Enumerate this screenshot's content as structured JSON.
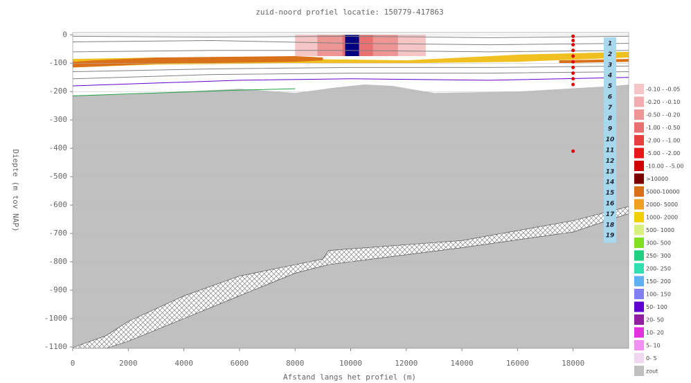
{
  "chart_data": {
    "type": "profile",
    "title": "zuid-noord profiel locatie: 150779-417863",
    "x_label": "Afstand langs het profiel (m)",
    "y_label": "Diepte (m tov NAP)",
    "xlim": [
      0,
      20000
    ],
    "xticks": [
      0,
      2000,
      4000,
      6000,
      8000,
      10000,
      12000,
      14000,
      16000,
      18000
    ],
    "ylim": [
      -1105,
      8
    ],
    "yticks": [
      0,
      -100,
      -200,
      -300,
      -400,
      -500,
      -600,
      -700,
      -800,
      -900,
      -1000,
      -1100
    ],
    "grid": true,
    "areas": [
      {
        "color": "#c0c0c0",
        "x": [
          0,
          2000,
          4000,
          6000,
          8000,
          9500,
          10500,
          11500,
          13000,
          16000,
          19500,
          20000
        ],
        "upper": [
          -215,
          -210,
          -200,
          -190,
          -205,
          -185,
          -175,
          -180,
          -205,
          -200,
          -180,
          -175
        ],
        "lower": [
          -1105,
          -1105,
          -1105,
          -1105,
          -1105,
          -1105,
          -1105,
          -1105,
          -1105,
          -1105,
          -1105,
          -1105
        ]
      },
      {
        "color": "#ffffff",
        "hatch": true,
        "x": [
          0,
          1200,
          2000,
          4000,
          6000,
          8000,
          9000,
          9200,
          14000,
          18000,
          20000
        ],
        "upper": [
          -1102,
          -1060,
          -1010,
          -920,
          -850,
          -810,
          -790,
          -760,
          -725,
          -655,
          -605
        ],
        "lower": [
          -1105,
          -1105,
          -1080,
          -1000,
          -920,
          -840,
          -815,
          -810,
          -750,
          -695,
          -630
        ]
      },
      {
        "color": "#f0c020",
        "x": [
          0,
          3000,
          8000,
          12000,
          16000,
          20000
        ],
        "upper": [
          -85,
          -80,
          -85,
          -90,
          -70,
          -60
        ],
        "lower": [
          -115,
          -105,
          -100,
          -100,
          -95,
          -80
        ]
      },
      {
        "color": "#d9701a",
        "x": [
          0,
          800,
          3000,
          8000,
          9000
        ],
        "upper": [
          -95,
          -90,
          -80,
          -75,
          -80
        ],
        "lower": [
          -115,
          -112,
          -102,
          -95,
          -90
        ]
      },
      {
        "color": "#d9701a",
        "x": [
          17500,
          18500,
          20000
        ],
        "upper": [
          -90,
          -88,
          -85
        ],
        "lower": [
          -100,
          -98,
          -95
        ]
      },
      {
        "color": "#f6c6c6",
        "x": [
          8000,
          12700
        ],
        "upper": [
          0,
          0
        ],
        "lower": [
          -75,
          -75
        ]
      },
      {
        "color": "#ee9696",
        "x": [
          8800,
          11700
        ],
        "upper": [
          0,
          0
        ],
        "lower": [
          -75,
          -75
        ]
      },
      {
        "color": "#e87070",
        "x": [
          9700,
          10800
        ],
        "upper": [
          0,
          0
        ],
        "lower": [
          -75,
          -75
        ]
      },
      {
        "color": "#000080",
        "x": [
          9800,
          10300
        ],
        "upper": [
          0,
          0
        ],
        "lower": [
          -75,
          -75
        ]
      }
    ],
    "lines": [
      {
        "color": "#808080",
        "x": [
          0,
          5000,
          10000,
          15000,
          20000
        ],
        "y": [
          -5,
          -8,
          -5,
          -10,
          -5
        ]
      },
      {
        "color": "#808080",
        "x": [
          0,
          5000,
          10000,
          15000,
          20000
        ],
        "y": [
          -25,
          -20,
          -30,
          -35,
          -30
        ]
      },
      {
        "color": "#808080",
        "x": [
          0,
          5000,
          10000,
          15000,
          20000
        ],
        "y": [
          -60,
          -55,
          -55,
          -60,
          -55
        ]
      },
      {
        "color": "#808080",
        "x": [
          0,
          5000,
          10000,
          15000,
          20000
        ],
        "y": [
          -130,
          -120,
          -115,
          -115,
          -110
        ]
      },
      {
        "color": "#808080",
        "x": [
          0,
          5000,
          10000,
          15000,
          20000
        ],
        "y": [
          -155,
          -140,
          -135,
          -135,
          -130
        ]
      },
      {
        "color": "#6000d0",
        "x": [
          0,
          3000,
          6000,
          10000,
          15000,
          20000
        ],
        "y": [
          -180,
          -170,
          -160,
          -155,
          -160,
          -150
        ]
      },
      {
        "color": "#20a040",
        "x": [
          0,
          3000,
          6000,
          8000
        ],
        "y": [
          -215,
          -205,
          -195,
          -190
        ]
      }
    ],
    "points": {
      "color": "#e00000",
      "x": [
        18000,
        18000,
        18000,
        18000,
        18000,
        18000,
        18000,
        18000,
        18000,
        18000,
        18000
      ],
      "y": [
        -5,
        -20,
        -35,
        -55,
        -75,
        -95,
        -115,
        -135,
        -155,
        -175,
        -410
      ]
    },
    "well_labels": [
      "1",
      "2",
      "3",
      "4",
      "5",
      "6",
      "7",
      "8",
      "9",
      "10",
      "11",
      "12",
      "13",
      "14",
      "15",
      "16",
      "17",
      "18",
      "19"
    ],
    "legend": [
      {
        "label": "-0.10 - -0.05",
        "color": "#f6c6c6"
      },
      {
        "label": "-0.20 - -0.10",
        "color": "#f2aeae"
      },
      {
        "label": "-0.50 - -0.20",
        "color": "#ee9696"
      },
      {
        "label": "-1.00 - -0.50",
        "color": "#e87070"
      },
      {
        "label": "-2.00 - -1.00",
        "color": "#e84040"
      },
      {
        "label": "-5.00 - -2.00",
        "color": "#e81818"
      },
      {
        "label": "-10.00 - -5.00",
        "color": "#d00000"
      },
      {
        "label": ">10000",
        "color": "#7a0000"
      },
      {
        "label": "5000-10000",
        "color": "#d9701a"
      },
      {
        "label": "2000- 5000",
        "color": "#f0a020"
      },
      {
        "label": "1000- 2000",
        "color": "#f0d000"
      },
      {
        "label": "500- 1000",
        "color": "#d8f080"
      },
      {
        "label": "300- 500",
        "color": "#80e020"
      },
      {
        "label": "250- 300",
        "color": "#20d080"
      },
      {
        "label": "200- 250",
        "color": "#30e0b0"
      },
      {
        "label": "150- 200",
        "color": "#60b0f0"
      },
      {
        "label": "100- 150",
        "color": "#8080f0"
      },
      {
        "label": "50- 100",
        "color": "#6000d0"
      },
      {
        "label": "20- 50",
        "color": "#9020a0"
      },
      {
        "label": "10- 20",
        "color": "#e030e0"
      },
      {
        "label": "5- 10",
        "color": "#f090f0"
      },
      {
        "label": "0- 5",
        "color": "#f0d8f0"
      },
      {
        "label": "zout",
        "color": "#c0c0c0"
      }
    ]
  }
}
